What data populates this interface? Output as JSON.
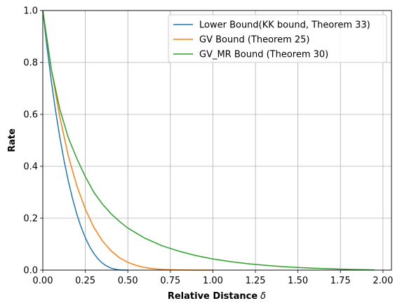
{
  "chart_data": {
    "type": "line",
    "xlabel": "Relative Distance",
    "xlabel_symbol": "δ",
    "ylabel": "Rate",
    "xlim": [
      0,
      2.05
    ],
    "ylim": [
      0,
      1.0
    ],
    "x_ticks": [
      0.0,
      0.25,
      0.5,
      0.75,
      1.0,
      1.25,
      1.5,
      1.75,
      2.0
    ],
    "x_tick_labels": [
      "0.00",
      "0.25",
      "0.50",
      "0.75",
      "1.00",
      "1.25",
      "1.50",
      "1.75",
      "2.00"
    ],
    "y_ticks": [
      0.0,
      0.2,
      0.4,
      0.6,
      0.8,
      1.0
    ],
    "y_tick_labels": [
      "0.0",
      "0.2",
      "0.4",
      "0.6",
      "0.8",
      "1.0"
    ],
    "grid": true,
    "legend_position": "top-right",
    "series": [
      {
        "name": "Lower Bound(KK bound, Theorem 33)",
        "color": "#1f77b4",
        "x": [
          0.0,
          0.025,
          0.05,
          0.075,
          0.1,
          0.125,
          0.15,
          0.175,
          0.2,
          0.225,
          0.25,
          0.275,
          0.3,
          0.325,
          0.35,
          0.375,
          0.4,
          0.425,
          0.45,
          0.475,
          0.5
        ],
        "y": [
          1.0,
          0.857,
          0.729,
          0.614,
          0.512,
          0.422,
          0.343,
          0.275,
          0.216,
          0.166,
          0.125,
          0.091,
          0.064,
          0.043,
          0.027,
          0.016,
          0.008,
          0.0034,
          0.001,
          0.0001,
          0.0
        ]
      },
      {
        "name": "GV Bound (Theorem 25)",
        "color": "#ff7f0e",
        "x": [
          0.0,
          0.05,
          0.1,
          0.15,
          0.2,
          0.25,
          0.3,
          0.35,
          0.4,
          0.45,
          0.5,
          0.55,
          0.6,
          0.65,
          0.7,
          0.75,
          0.8,
          0.85,
          0.9,
          0.95,
          1.0
        ],
        "y": [
          1.0,
          0.774,
          0.59,
          0.44,
          0.325,
          0.235,
          0.165,
          0.113,
          0.075,
          0.048,
          0.03,
          0.0178,
          0.01,
          0.0054,
          0.0027,
          0.0013,
          0.0006,
          0.00022,
          8e-05,
          2e-05,
          0.0
        ]
      },
      {
        "name": "GV_MR Bound (Theorem 30)",
        "color": "#2ca02c",
        "x": [
          0.0,
          0.05,
          0.1,
          0.15,
          0.2,
          0.25,
          0.3,
          0.35,
          0.4,
          0.45,
          0.5,
          0.6,
          0.7,
          0.8,
          0.9,
          1.0,
          1.1,
          1.2,
          1.3,
          1.4,
          1.5,
          1.6,
          1.7,
          1.8,
          1.9,
          1.95
        ],
        "y": [
          1.0,
          0.774,
          0.62,
          0.51,
          0.43,
          0.36,
          0.3,
          0.255,
          0.218,
          0.188,
          0.162,
          0.123,
          0.094,
          0.073,
          0.056,
          0.043,
          0.033,
          0.025,
          0.019,
          0.014,
          0.01,
          0.007,
          0.005,
          0.0028,
          0.0012,
          0.0005
        ]
      }
    ]
  }
}
